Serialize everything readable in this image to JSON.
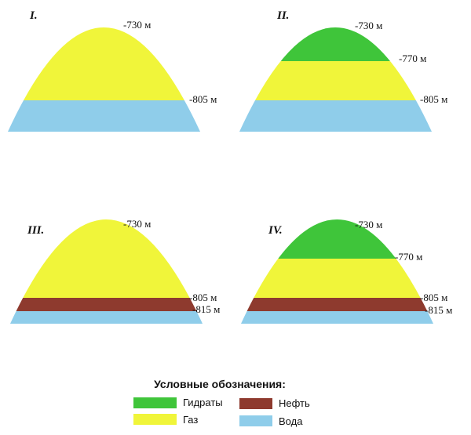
{
  "panels": [
    {
      "label": "I.",
      "depths": [
        "-730 м",
        "-805 м"
      ]
    },
    {
      "label": "II.",
      "depths": [
        "-730 м",
        "-770 м",
        "-805 м"
      ]
    },
    {
      "label": "III.",
      "depths": [
        "-730 м",
        "-805 м",
        "-815 м"
      ]
    },
    {
      "label": "IV.",
      "depths": [
        "-730 м",
        "-770 м",
        "-805 м",
        "-815 м"
      ]
    }
  ],
  "legend": {
    "title": "Условные обозначения:",
    "items": [
      "Гидраты",
      "Газ",
      "Нефть",
      "Вода"
    ]
  }
}
